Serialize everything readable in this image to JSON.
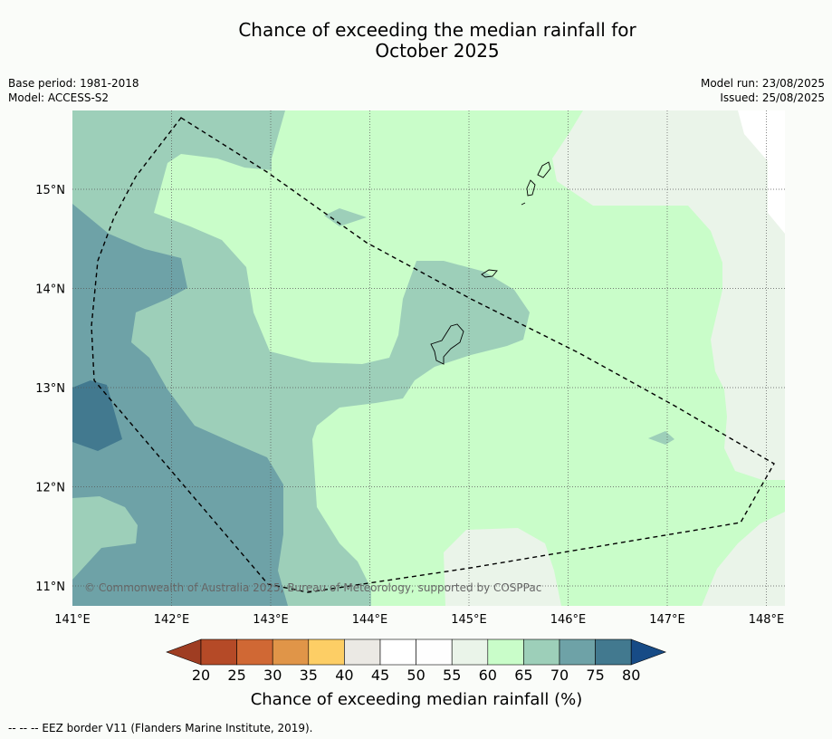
{
  "title_line1": "Chance of exceeding the median rainfall for",
  "title_line2": "October 2025",
  "base_period": "Base period: 1981-2018",
  "model": "Model: ACCESS-S2",
  "model_run": "Model run: 23/08/2025",
  "issued": "Issued: 25/08/2025",
  "copyright": "© Commonwealth of Australia 2025, Bureau of Meteorology, supported by COSPPac",
  "lon_ticks": [
    "141°E",
    "142°E",
    "143°E",
    "144°E",
    "145°E",
    "146°E",
    "147°E",
    "148°E"
  ],
  "lat_ticks": [
    "15°N",
    "14°N",
    "13°N",
    "12°N",
    "11°N"
  ],
  "colorbar": {
    "title": "Chance of exceeding median rainfall (%)",
    "labels": [
      "20",
      "25",
      "30",
      "35",
      "40",
      "45",
      "50",
      "55",
      "60",
      "65",
      "70",
      "75",
      "80"
    ],
    "colors": [
      "#9f3d22",
      "#b54a27",
      "#d06834",
      "#e09548",
      "#fdce65",
      "#ebe9e4",
      "#ffffff",
      "#fefefe",
      "#eaf4e9",
      "#c9fdc9",
      "#9dcfb9",
      "#6ea2a7",
      "#42798f",
      "#174b86"
    ]
  },
  "legend_note": "--  --  -- EEZ border V11 (Flanders Marine Institute, 2019)."
}
